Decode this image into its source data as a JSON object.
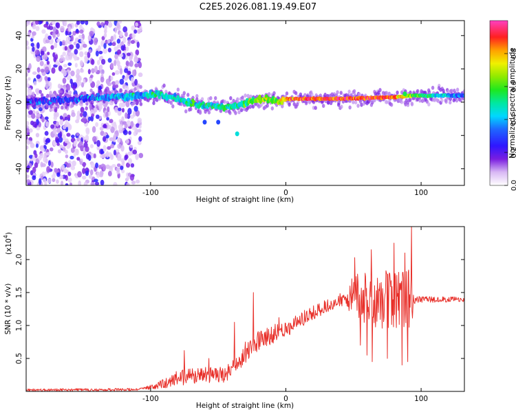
{
  "title": "C2E5.2026.081.19.49.E07",
  "colors": {
    "line": "#e8302a",
    "axis": "#000000",
    "background": "#ffffff"
  },
  "chart_data": [
    {
      "type": "heatmap",
      "name": "spectrogram",
      "xlabel": "Height of straight line (km)",
      "ylabel": "Frequency (Hz)",
      "xlim": [
        -192,
        132
      ],
      "ylim": [
        -50,
        49
      ],
      "xticks": [
        -100,
        0,
        100
      ],
      "xtick_labels": [
        "-100",
        "0",
        "100"
      ],
      "yticks": [
        -40,
        -20,
        0,
        20,
        40
      ],
      "ytick_labels": [
        "-40",
        "-20",
        "0",
        "20",
        "40"
      ],
      "colorbar": {
        "label": "Normalized spectral amplitude",
        "range": [
          0,
          1
        ],
        "ticks": [
          0.0,
          0.2,
          0.4,
          0.6,
          0.8
        ],
        "tick_labels": [
          "0.0",
          "0.2",
          "0.4",
          "0.6",
          "0.8"
        ]
      },
      "noise_region_x": [
        -192,
        -107
      ],
      "ridge": [
        {
          "x": -192,
          "f": 0,
          "amp": 0.25
        },
        {
          "x": -150,
          "f": 2,
          "amp": 0.3
        },
        {
          "x": -110,
          "f": 4,
          "amp": 0.4
        },
        {
          "x": -95,
          "f": 5,
          "amp": 0.45
        },
        {
          "x": -80,
          "f": 2,
          "amp": 0.45
        },
        {
          "x": -70,
          "f": -1,
          "amp": 0.5
        },
        {
          "x": -60,
          "f": -2,
          "amp": 0.5
        },
        {
          "x": -45,
          "f": -3,
          "amp": 0.5
        },
        {
          "x": -35,
          "f": -2,
          "amp": 0.5
        },
        {
          "x": -25,
          "f": 1,
          "amp": 0.6
        },
        {
          "x": -15,
          "f": 2,
          "amp": 0.7
        },
        {
          "x": -5,
          "f": 0,
          "amp": 0.6
        },
        {
          "x": 0,
          "f": 2,
          "amp": 0.85
        },
        {
          "x": 40,
          "f": 2,
          "amp": 0.9
        },
        {
          "x": 80,
          "f": 3,
          "amp": 0.85
        },
        {
          "x": 95,
          "f": 4,
          "amp": 0.6
        },
        {
          "x": 132,
          "f": 4,
          "amp": 0.3
        }
      ],
      "features": [
        {
          "x": -60,
          "f": -12,
          "amp": 0.3
        },
        {
          "x": -50,
          "f": -12,
          "amp": 0.3
        },
        {
          "x": -36,
          "f": -19,
          "amp": 0.45
        },
        {
          "x": 88,
          "f": 5,
          "amp": 0.55
        }
      ]
    },
    {
      "type": "line",
      "name": "snr",
      "xlabel": "Height of straight line (km)",
      "ylabel": "SNR (10 * v/v)",
      "multiplier": "(x10",
      "multiplier_exp": "4",
      "multiplier_close": ")",
      "xlim": [
        -192,
        132
      ],
      "ylim": [
        0,
        2.5
      ],
      "xticks": [
        -100,
        0,
        100
      ],
      "xtick_labels": [
        "-100",
        "0",
        "100"
      ],
      "yticks": [
        0.5,
        1.0,
        1.5,
        2.0
      ],
      "ytick_labels": [
        "0.5",
        "1.0",
        "1.5",
        "2.0"
      ],
      "envelope": [
        {
          "x": -192,
          "y": 0.02
        },
        {
          "x": -110,
          "y": 0.03
        },
        {
          "x": -95,
          "y": 0.08
        },
        {
          "x": -80,
          "y": 0.2
        },
        {
          "x": -60,
          "y": 0.25
        },
        {
          "x": -45,
          "y": 0.25
        },
        {
          "x": -35,
          "y": 0.45
        },
        {
          "x": -20,
          "y": 0.78
        },
        {
          "x": 0,
          "y": 0.95
        },
        {
          "x": 20,
          "y": 1.2
        },
        {
          "x": 40,
          "y": 1.38
        },
        {
          "x": 50,
          "y": 1.42
        },
        {
          "x": 70,
          "y": 1.4
        },
        {
          "x": 90,
          "y": 1.4
        },
        {
          "x": 95,
          "y": 1.4
        },
        {
          "x": 132,
          "y": 1.39
        }
      ],
      "noise_amplitude": [
        {
          "x": -192,
          "a": 0.02
        },
        {
          "x": -105,
          "a": 0.02
        },
        {
          "x": -95,
          "a": 0.06
        },
        {
          "x": -80,
          "a": 0.12
        },
        {
          "x": -40,
          "a": 0.12
        },
        {
          "x": -20,
          "a": 0.15
        },
        {
          "x": 30,
          "a": 0.1
        },
        {
          "x": 45,
          "a": 0.12
        },
        {
          "x": 50,
          "a": 0.35
        },
        {
          "x": 70,
          "a": 0.45
        },
        {
          "x": 92,
          "a": 0.45
        },
        {
          "x": 96,
          "a": 0.05
        },
        {
          "x": 132,
          "a": 0.04
        }
      ],
      "spikes": [
        {
          "x": -75,
          "y": 0.62
        },
        {
          "x": -57,
          "y": 0.5
        },
        {
          "x": -38,
          "y": 1.05
        },
        {
          "x": -34,
          "y": 0.5
        },
        {
          "x": -30,
          "y": 0.75
        },
        {
          "x": -24,
          "y": 1.5
        },
        {
          "x": -5,
          "y": 1.12
        },
        {
          "x": 51,
          "y": 2.03
        },
        {
          "x": 55,
          "y": 0.7
        },
        {
          "x": 60,
          "y": 0.55
        },
        {
          "x": 63,
          "y": 2.15
        },
        {
          "x": 64,
          "y": 0.45
        },
        {
          "x": 75,
          "y": 0.5
        },
        {
          "x": 80,
          "y": 2.25
        },
        {
          "x": 86,
          "y": 0.4
        },
        {
          "x": 88,
          "y": 2.1
        },
        {
          "x": 90,
          "y": 0.45
        },
        {
          "x": 93,
          "y": 2.5
        }
      ]
    }
  ]
}
